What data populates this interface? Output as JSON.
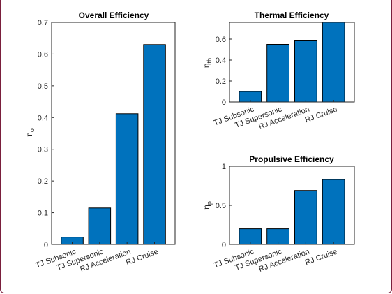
{
  "charts": {
    "overall": {
      "title": "Overall Efficiency",
      "ylabel_symbol": "η",
      "ylabel_sub": "o",
      "yticks": [
        "0",
        "0.1",
        "0.2",
        "0.3",
        "0.4",
        "0.5",
        "0.6",
        "0.7"
      ]
    },
    "thermal": {
      "title": "Thermal Efficiency",
      "ylabel_symbol": "η",
      "ylabel_sub": "th",
      "yticks": [
        "0",
        "0.2",
        "0.4",
        "0.6"
      ]
    },
    "propulsive": {
      "title": "Propulsive Efficiency",
      "ylabel_symbol": "η",
      "ylabel_sub": "p",
      "yticks": [
        "0",
        "0.5",
        "1"
      ]
    }
  },
  "chart_data": [
    {
      "type": "bar",
      "title": "Overall Efficiency",
      "ylabel": "η_o",
      "xlabel": "",
      "categories": [
        "TJ Subsonic",
        "TJ Supersonic",
        "RJ Acceleration",
        "RJ Cruise"
      ],
      "values": [
        0.023,
        0.115,
        0.412,
        0.63
      ],
      "ylim": [
        0,
        0.7
      ],
      "yticks": [
        0,
        0.1,
        0.2,
        0.3,
        0.4,
        0.5,
        0.6,
        0.7
      ],
      "bar_color": "#0072BD",
      "grid": false
    },
    {
      "type": "bar",
      "title": "Thermal Efficiency",
      "ylabel": "η_th",
      "xlabel": "",
      "categories": [
        "TJ Subsonic",
        "TJ Supersonic",
        "RJ Acceleration",
        "RJ Cruise"
      ],
      "values": [
        0.1,
        0.55,
        0.59,
        0.76
      ],
      "ylim": [
        0,
        0.76
      ],
      "yticks": [
        0,
        0.2,
        0.4,
        0.6
      ],
      "bar_color": "#0072BD",
      "grid": false
    },
    {
      "type": "bar",
      "title": "Propulsive Efficiency",
      "ylabel": "η_p",
      "xlabel": "",
      "categories": [
        "TJ Subsonic",
        "TJ Supersonic",
        "RJ Acceleration",
        "RJ Cruise"
      ],
      "values": [
        0.2,
        0.2,
        0.69,
        0.83
      ],
      "ylim": [
        0,
        1
      ],
      "yticks": [
        0,
        0.5,
        1
      ],
      "bar_color": "#0072BD",
      "grid": false
    }
  ]
}
